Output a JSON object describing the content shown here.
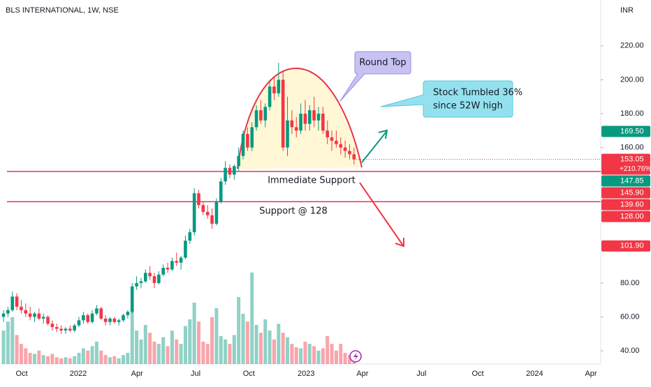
{
  "chart_data": {
    "type": "candlestick",
    "title": "BLS INTERNATIONAL, 1W, NSE",
    "currency": "INR",
    "up_color": "#089981",
    "down_color": "#f23645",
    "open": [
      60,
      62,
      64,
      72,
      66,
      64,
      62,
      60,
      62,
      59,
      60,
      56,
      54,
      53,
      52,
      53,
      52,
      55,
      58,
      61,
      57,
      62,
      65,
      59,
      57,
      59,
      57,
      58,
      61,
      63,
      78,
      80,
      81,
      86,
      84,
      80,
      85,
      89,
      88,
      93,
      92,
      95,
      105,
      110,
      133,
      126,
      122,
      120,
      115,
      128,
      140,
      148,
      144,
      149,
      155,
      168,
      160,
      172,
      182,
      176,
      184,
      196,
      192,
      200,
      160,
      176,
      172,
      170,
      180,
      174,
      182,
      176,
      180,
      170,
      166,
      164,
      162,
      160,
      158,
      156
    ],
    "high": [
      64,
      66,
      75,
      74,
      70,
      68,
      66,
      63,
      65,
      62,
      61,
      58,
      56,
      55,
      54,
      55,
      56,
      60,
      63,
      62,
      64,
      67,
      66,
      61,
      60,
      60,
      59,
      62,
      64,
      80,
      84,
      83,
      88,
      90,
      86,
      87,
      91,
      92,
      95,
      98,
      96,
      108,
      112,
      136,
      135,
      128,
      126,
      124,
      130,
      142,
      152,
      150,
      150,
      160,
      170,
      172,
      175,
      185,
      188,
      186,
      200,
      202,
      210,
      205,
      190,
      182,
      178,
      186,
      188,
      185,
      190,
      184,
      184,
      176,
      170,
      170,
      166,
      164,
      162,
      160
    ],
    "low": [
      57,
      60,
      63,
      64,
      62,
      60,
      58,
      57,
      58,
      56,
      55,
      52,
      51,
      50,
      50,
      51,
      51,
      54,
      56,
      56,
      56,
      61,
      58,
      55,
      55,
      56,
      55,
      57,
      59,
      62,
      76,
      77,
      80,
      82,
      77,
      79,
      84,
      86,
      87,
      90,
      88,
      94,
      103,
      108,
      124,
      120,
      118,
      112,
      114,
      127,
      138,
      142,
      141,
      146,
      153,
      158,
      158,
      170,
      174,
      172,
      182,
      188,
      190,
      158,
      155,
      168,
      166,
      168,
      170,
      170,
      172,
      170,
      168,
      162,
      158,
      160,
      156,
      154,
      153,
      150
    ],
    "close": [
      62,
      64,
      72,
      66,
      64,
      62,
      60,
      62,
      59,
      60,
      56,
      54,
      53,
      52,
      53,
      52,
      55,
      58,
      61,
      57,
      62,
      65,
      59,
      57,
      59,
      57,
      58,
      61,
      63,
      78,
      80,
      81,
      86,
      84,
      80,
      85,
      89,
      88,
      93,
      92,
      95,
      105,
      110,
      133,
      126,
      122,
      120,
      115,
      128,
      140,
      148,
      144,
      149,
      155,
      168,
      160,
      172,
      182,
      176,
      184,
      196,
      192,
      200,
      160,
      176,
      172,
      170,
      180,
      174,
      182,
      176,
      180,
      170,
      166,
      164,
      162,
      160,
      158,
      156,
      153
    ],
    "volume": [
      30,
      38,
      42,
      26,
      18,
      14,
      10,
      9,
      12,
      8,
      7,
      9,
      6,
      5,
      6,
      5,
      7,
      10,
      14,
      12,
      16,
      20,
      12,
      8,
      6,
      7,
      5,
      8,
      10,
      48,
      30,
      22,
      35,
      28,
      20,
      18,
      24,
      16,
      30,
      22,
      18,
      34,
      40,
      55,
      38,
      20,
      18,
      42,
      50,
      25,
      22,
      18,
      26,
      60,
      45,
      38,
      82,
      35,
      28,
      40,
      30,
      22,
      36,
      28,
      24,
      18,
      15,
      14,
      20,
      18,
      16,
      12,
      14,
      25,
      18,
      12,
      18,
      10,
      8,
      6
    ],
    "vlim": [
      0,
      100
    ],
    "xlim": [
      -0.79,
      134.6
    ],
    "xticks": [
      {
        "value": 4.1,
        "label": "Oct"
      },
      {
        "value": 16.85,
        "label": "2022"
      },
      {
        "value": 30.1,
        "label": "Apr"
      },
      {
        "value": 43.3,
        "label": "Jul"
      },
      {
        "value": 55.3,
        "label": "Oct"
      },
      {
        "value": 68.2,
        "label": "2023"
      },
      {
        "value": 80.9,
        "label": "Apr"
      },
      {
        "value": 94.2,
        "label": "Jul"
      },
      {
        "value": 106.9,
        "label": "Oct"
      },
      {
        "value": 119.7,
        "label": "2024"
      },
      {
        "value": 132.4,
        "label": "Apr"
      }
    ],
    "ylim": [
      32.2,
      247.1
    ],
    "yticks": [
      {
        "value": 40,
        "label": "40.00"
      },
      {
        "value": 60,
        "label": "60.00"
      },
      {
        "value": 80,
        "label": "80.00"
      },
      {
        "value": 160,
        "label": "160.00"
      },
      {
        "value": 180,
        "label": "180.00"
      },
      {
        "value": 200,
        "label": "200.00"
      },
      {
        "value": 220,
        "label": "220.00"
      }
    ],
    "price_tags": [
      {
        "value": 169.5,
        "label": "169.50",
        "color": "#089981"
      },
      {
        "value": 153.05,
        "label": "153.05",
        "color": "#f23645",
        "sublabel": {
          "value": 210.76,
          "label": "+210.76%"
        }
      },
      {
        "value": 147.85,
        "label": "147.85",
        "color": "#089981"
      },
      {
        "value": 145.9,
        "label": "145.90",
        "color": "#f23645"
      },
      {
        "value": 139.6,
        "label": "139.60",
        "color": "#f23645"
      },
      {
        "value": 128,
        "label": "128.00",
        "color": "#f23645"
      },
      {
        "value": 101.9,
        "label": "101.90",
        "color": "#f23645"
      }
    ],
    "annotations": {
      "round_top": "Round Top",
      "tumbled": [
        "Stock Tumbled 36%",
        "since 52W high"
      ],
      "immediate_support": "Immediate Support",
      "support": "Support @ 128"
    }
  }
}
